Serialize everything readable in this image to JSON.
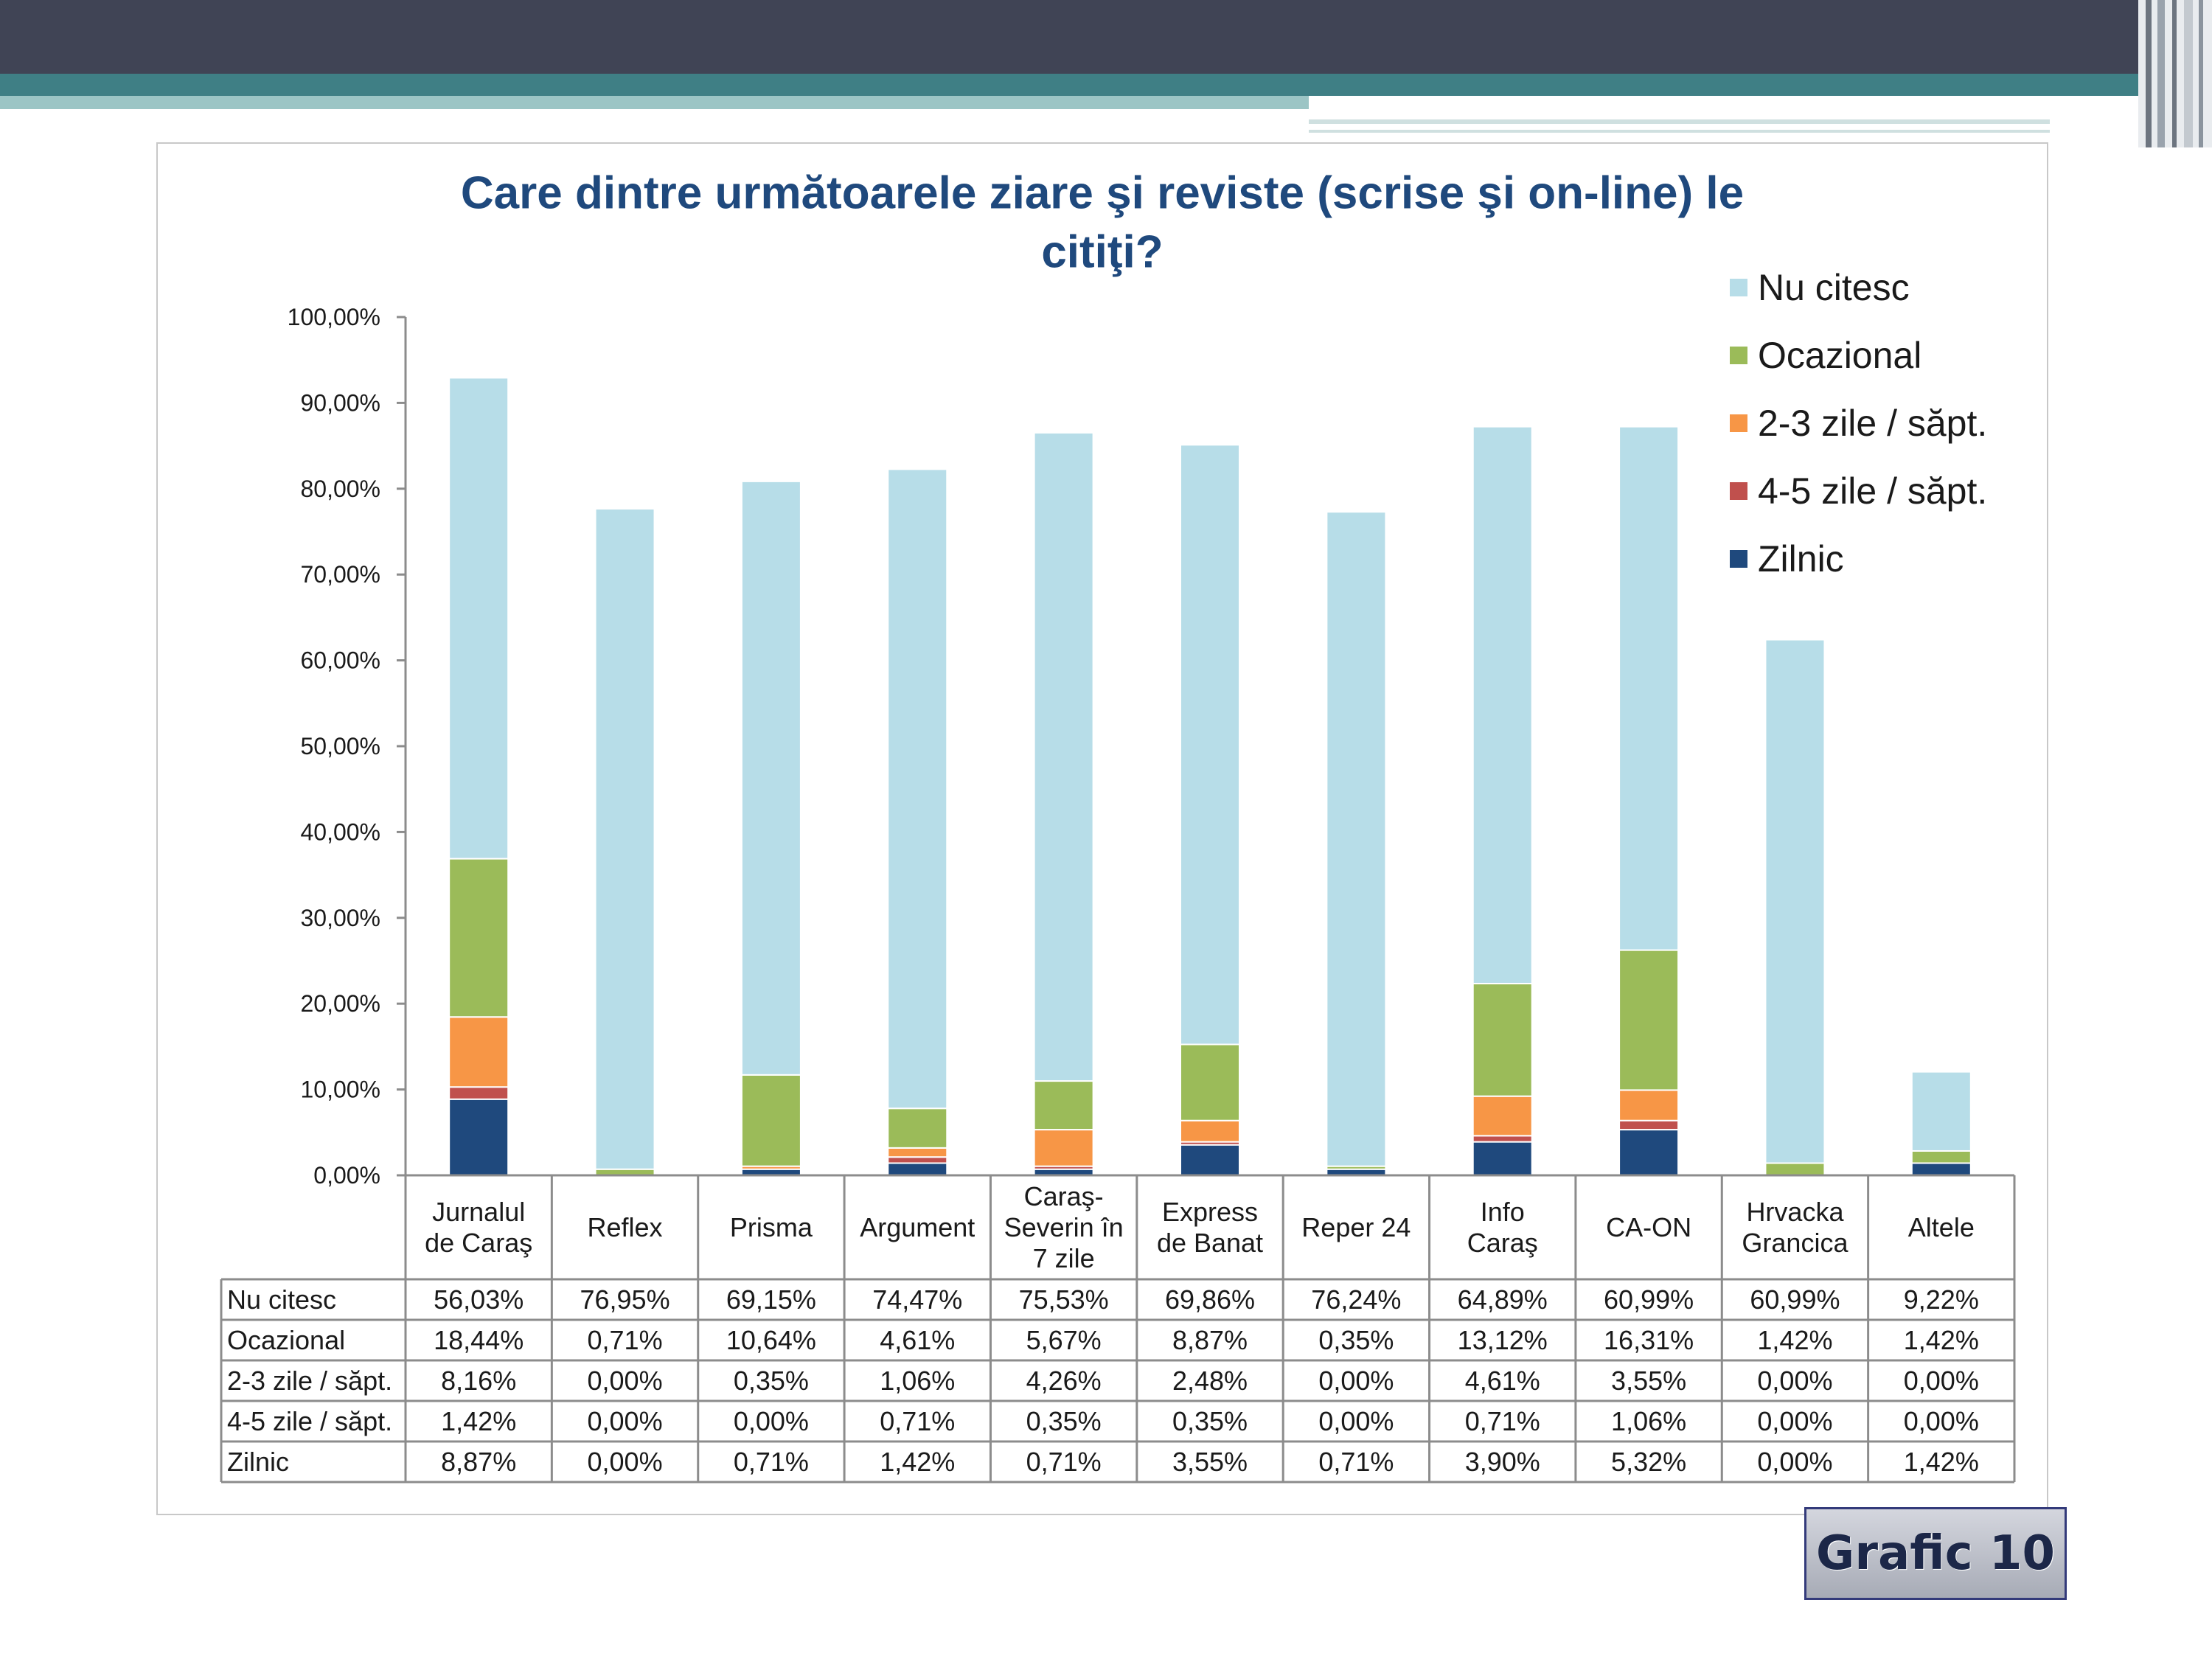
{
  "chart_data": {
    "type": "bar",
    "stacked": true,
    "title_lines": [
      "Care dintre următoarele ziare şi reviste (scrise şi on-line) le",
      "citiţi?"
    ],
    "categories": [
      [
        "Jurnalul",
        "de Caraş"
      ],
      [
        "Reflex"
      ],
      [
        "Prisma"
      ],
      [
        "Argument"
      ],
      [
        "Caraş-",
        "Severin în",
        "7 zile"
      ],
      [
        "Express",
        "de Banat"
      ],
      [
        "Reper 24"
      ],
      [
        "Info",
        "Caraş"
      ],
      [
        "CA-ON"
      ],
      [
        "Hrvacka",
        "Grancica"
      ],
      [
        "Altele"
      ]
    ],
    "series": [
      {
        "name": "Zilnic",
        "color": "#1f497d",
        "values": [
          8.87,
          0.0,
          0.71,
          1.42,
          0.71,
          3.55,
          0.71,
          3.9,
          5.32,
          0.0,
          1.42
        ],
        "labels": [
          "8,87%",
          "0,00%",
          "0,71%",
          "1,42%",
          "0,71%",
          "3,55%",
          "0,71%",
          "3,90%",
          "5,32%",
          "0,00%",
          "1,42%"
        ]
      },
      {
        "name": "4-5 zile / săpt.",
        "color": "#c0504d",
        "values": [
          1.42,
          0.0,
          0.0,
          0.71,
          0.35,
          0.35,
          0.0,
          0.71,
          1.06,
          0.0,
          0.0
        ],
        "labels": [
          "1,42%",
          "0,00%",
          "0,00%",
          "0,71%",
          "0,35%",
          "0,35%",
          "0,00%",
          "0,71%",
          "1,06%",
          "0,00%",
          "0,00%"
        ]
      },
      {
        "name": "2-3 zile / săpt.",
        "color": "#f79646",
        "values": [
          8.16,
          0.0,
          0.35,
          1.06,
          4.26,
          2.48,
          0.0,
          4.61,
          3.55,
          0.0,
          0.0
        ],
        "labels": [
          "8,16%",
          "0,00%",
          "0,35%",
          "1,06%",
          "4,26%",
          "2,48%",
          "0,00%",
          "4,61%",
          "3,55%",
          "0,00%",
          "0,00%"
        ]
      },
      {
        "name": "Ocazional",
        "color": "#9bbb59",
        "values": [
          18.44,
          0.71,
          10.64,
          4.61,
          5.67,
          8.87,
          0.35,
          13.12,
          16.31,
          1.42,
          1.42
        ],
        "labels": [
          "18,44%",
          "0,71%",
          "10,64%",
          "4,61%",
          "5,67%",
          "8,87%",
          "0,35%",
          "13,12%",
          "16,31%",
          "1,42%",
          "1,42%"
        ]
      },
      {
        "name": "Nu citesc",
        "color": "#b7dde8",
        "values": [
          56.03,
          76.95,
          69.15,
          74.47,
          75.53,
          69.86,
          76.24,
          64.89,
          60.99,
          60.99,
          9.22
        ],
        "labels": [
          "56,03%",
          "76,95%",
          "69,15%",
          "74,47%",
          "75,53%",
          "69,86%",
          "76,24%",
          "64,89%",
          "60,99%",
          "60,99%",
          "9,22%"
        ]
      }
    ],
    "table_row_order": [
      "Nu citesc",
      "Ocazional",
      "2-3 zile / săpt.",
      "4-5 zile / săpt.",
      "Zilnic"
    ],
    "legend_order": [
      "Nu citesc",
      "Ocazional",
      "2-3 zile / săpt.",
      "4-5 zile / săpt.",
      "Zilnic"
    ],
    "legend_position": "top-right",
    "yticks": [
      "0,00%",
      "10,00%",
      "20,00%",
      "30,00%",
      "40,00%",
      "50,00%",
      "60,00%",
      "70,00%",
      "80,00%",
      "90,00%",
      "100,00%"
    ],
    "ylim": [
      0,
      100
    ],
    "grid": false
  },
  "badge": {
    "label": "Grafic 10"
  }
}
